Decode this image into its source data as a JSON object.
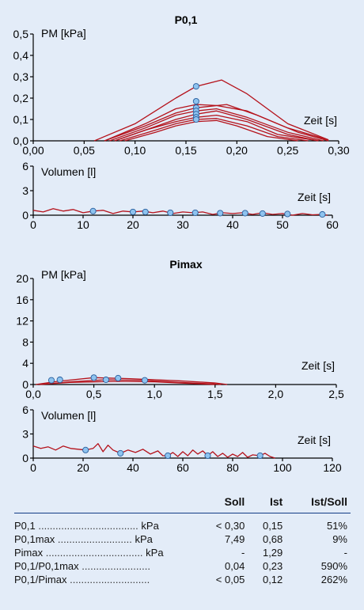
{
  "chart_data": [
    {
      "type": "line",
      "title": "P0,1",
      "ylabel": "PM [kPa]",
      "xlabel": "Zeit [s]",
      "xlim": [
        0,
        0.3
      ],
      "ylim": [
        0,
        0.5
      ],
      "x_ticks": [
        "0,00",
        "0,05",
        "0,10",
        "0,15",
        "0,20",
        "0,25",
        "0,30"
      ],
      "y_ticks": [
        "0,0",
        "0,1",
        "0,2",
        "0,3",
        "0,4",
        "0,5"
      ],
      "marker_x": 0.16,
      "markers_y": [
        0.255,
        0.185,
        0.155,
        0.14,
        0.125,
        0.11,
        0.1
      ],
      "series": [
        {
          "points": [
            [
              0.06,
              0
            ],
            [
              0.1,
              0.08
            ],
            [
              0.14,
              0.2
            ],
            [
              0.16,
              0.255
            ],
            [
              0.185,
              0.285
            ],
            [
              0.21,
              0.22
            ],
            [
              0.25,
              0.08
            ],
            [
              0.29,
              0.005
            ]
          ]
        },
        {
          "points": [
            [
              0.07,
              0
            ],
            [
              0.11,
              0.08
            ],
            [
              0.14,
              0.15
            ],
            [
              0.16,
              0.17
            ],
            [
              0.18,
              0.165
            ],
            [
              0.21,
              0.14
            ],
            [
              0.25,
              0.06
            ],
            [
              0.29,
              0.005
            ]
          ]
        },
        {
          "points": [
            [
              0.07,
              0
            ],
            [
              0.11,
              0.07
            ],
            [
              0.14,
              0.13
            ],
            [
              0.16,
              0.155
            ],
            [
              0.19,
              0.17
            ],
            [
              0.22,
              0.12
            ],
            [
              0.26,
              0.04
            ],
            [
              0.29,
              0
            ]
          ]
        },
        {
          "points": [
            [
              0.075,
              0
            ],
            [
              0.11,
              0.06
            ],
            [
              0.14,
              0.12
            ],
            [
              0.16,
              0.14
            ],
            [
              0.18,
              0.15
            ],
            [
              0.21,
              0.11
            ],
            [
              0.25,
              0.04
            ],
            [
              0.285,
              0
            ]
          ]
        },
        {
          "points": [
            [
              0.08,
              0
            ],
            [
              0.11,
              0.05
            ],
            [
              0.14,
              0.1
            ],
            [
              0.16,
              0.125
            ],
            [
              0.18,
              0.14
            ],
            [
              0.21,
              0.1
            ],
            [
              0.25,
              0.03
            ],
            [
              0.28,
              0
            ]
          ]
        },
        {
          "points": [
            [
              0.08,
              0
            ],
            [
              0.11,
              0.05
            ],
            [
              0.14,
              0.09
            ],
            [
              0.16,
              0.11
            ],
            [
              0.18,
              0.12
            ],
            [
              0.21,
              0.09
            ],
            [
              0.24,
              0.03
            ],
            [
              0.28,
              0
            ]
          ]
        },
        {
          "points": [
            [
              0.085,
              0
            ],
            [
              0.12,
              0.05
            ],
            [
              0.14,
              0.08
            ],
            [
              0.16,
              0.1
            ],
            [
              0.18,
              0.105
            ],
            [
              0.21,
              0.07
            ],
            [
              0.24,
              0.02
            ],
            [
              0.27,
              0
            ]
          ]
        },
        {
          "points": [
            [
              0.09,
              0
            ],
            [
              0.12,
              0.04
            ],
            [
              0.14,
              0.07
            ],
            [
              0.16,
              0.09
            ],
            [
              0.18,
              0.095
            ],
            [
              0.2,
              0.07
            ],
            [
              0.23,
              0.02
            ],
            [
              0.26,
              0
            ]
          ]
        }
      ]
    },
    {
      "type": "line",
      "ylabel": "Volumen [l]",
      "xlabel": "Zeit [s]",
      "xlim": [
        0,
        60
      ],
      "ylim": [
        0,
        6
      ],
      "x_ticks": [
        "0",
        "10",
        "20",
        "30",
        "40",
        "50",
        "60"
      ],
      "y_ticks": [
        "0",
        "3",
        "6"
      ],
      "markers": [
        [
          12,
          0.5
        ],
        [
          20,
          0.4
        ],
        [
          22.5,
          0.4
        ],
        [
          27.5,
          0.3
        ],
        [
          32.5,
          0.3
        ],
        [
          37.5,
          0.25
        ],
        [
          42.5,
          0.25
        ],
        [
          46,
          0.2
        ],
        [
          51,
          0.15
        ],
        [
          58,
          0.1
        ]
      ],
      "series": [
        {
          "points": [
            [
              0,
              0.6
            ],
            [
              2,
              0.4
            ],
            [
              4,
              0.8
            ],
            [
              6,
              0.5
            ],
            [
              8,
              0.7
            ],
            [
              10,
              0.3
            ],
            [
              12,
              0.5
            ],
            [
              14,
              0.6
            ],
            [
              16,
              0.2
            ],
            [
              18,
              0.5
            ],
            [
              20,
              0.4
            ],
            [
              22,
              0.5
            ],
            [
              24,
              0.3
            ],
            [
              26,
              0.5
            ],
            [
              28,
              0.2
            ],
            [
              30,
              0.4
            ],
            [
              32,
              0.3
            ],
            [
              34,
              0.4
            ],
            [
              36,
              0.1
            ],
            [
              38,
              0.3
            ],
            [
              40,
              0.2
            ],
            [
              42,
              0.3
            ],
            [
              44,
              0.1
            ],
            [
              46,
              0.3
            ],
            [
              48,
              0.1
            ],
            [
              50,
              0.2
            ],
            [
              52,
              0
            ],
            [
              54,
              0.2
            ],
            [
              56,
              0.05
            ],
            [
              58,
              0.1
            ],
            [
              59,
              0
            ]
          ]
        }
      ]
    },
    {
      "type": "line",
      "title": "Pimax",
      "ylabel": "PM [kPa]",
      "xlabel": "Zeit [s]",
      "xlim": [
        0,
        2.5
      ],
      "ylim": [
        0,
        20
      ],
      "x_ticks": [
        "0,0",
        "0,5",
        "1,0",
        "1,5",
        "2,0",
        "2,5"
      ],
      "y_ticks": [
        "0",
        "4",
        "8",
        "12",
        "16",
        "20"
      ],
      "markers": [
        [
          0.15,
          0.8
        ],
        [
          0.22,
          0.9
        ],
        [
          0.5,
          1.3
        ],
        [
          0.6,
          0.9
        ],
        [
          0.7,
          1.2
        ],
        [
          0.92,
          0.8
        ]
      ],
      "series": [
        {
          "points": [
            [
              0.02,
              0
            ],
            [
              0.2,
              0.6
            ],
            [
              0.5,
              1.3
            ],
            [
              0.8,
              1.1
            ],
            [
              1.2,
              0.7
            ],
            [
              1.5,
              0.3
            ],
            [
              1.6,
              0
            ]
          ]
        },
        {
          "points": [
            [
              0.05,
              0
            ],
            [
              0.3,
              0.5
            ],
            [
              0.6,
              0.9
            ],
            [
              0.9,
              0.8
            ],
            [
              1.2,
              0.4
            ],
            [
              1.5,
              0.1
            ],
            [
              1.55,
              0
            ]
          ]
        },
        {
          "points": [
            [
              0.05,
              0
            ],
            [
              0.3,
              0.4
            ],
            [
              0.7,
              0.6
            ],
            [
              1.0,
              0.5
            ],
            [
              1.3,
              0.2
            ],
            [
              1.5,
              0
            ]
          ]
        }
      ]
    },
    {
      "type": "line",
      "ylabel": "Volumen [l]",
      "xlabel": "Zeit [s]",
      "xlim": [
        0,
        120
      ],
      "ylim": [
        0,
        6
      ],
      "x_ticks": [
        "0",
        "20",
        "40",
        "60",
        "80",
        "100",
        "120"
      ],
      "y_ticks": [
        "0",
        "3",
        "6"
      ],
      "markers": [
        [
          21,
          1.0
        ],
        [
          35,
          0.6
        ],
        [
          54,
          0.3
        ],
        [
          70,
          0.3
        ],
        [
          91,
          0.3
        ]
      ],
      "series": [
        {
          "points": [
            [
              0,
              1.5
            ],
            [
              3,
              1.2
            ],
            [
              6,
              1.4
            ],
            [
              9,
              1.0
            ],
            [
              12,
              1.5
            ],
            [
              15,
              1.2
            ],
            [
              18,
              1.1
            ],
            [
              21,
              1.0
            ],
            [
              24,
              1.2
            ],
            [
              26,
              1.8
            ],
            [
              28,
              0.8
            ],
            [
              30,
              1.6
            ],
            [
              32,
              1.0
            ],
            [
              35,
              0.6
            ],
            [
              38,
              1.0
            ],
            [
              41,
              0.7
            ],
            [
              44,
              1.1
            ],
            [
              47,
              0.5
            ],
            [
              50,
              0.9
            ],
            [
              52,
              0.3
            ],
            [
              54,
              0.3
            ],
            [
              56,
              0.7
            ],
            [
              58,
              0.2
            ],
            [
              60,
              0.8
            ],
            [
              62,
              0.3
            ],
            [
              64,
              1.0
            ],
            [
              66,
              0.5
            ],
            [
              68,
              0.9
            ],
            [
              70,
              0.3
            ],
            [
              72,
              0.8
            ],
            [
              74,
              0.2
            ],
            [
              76,
              0.6
            ],
            [
              78,
              0.1
            ],
            [
              80,
              0.5
            ],
            [
              82,
              0.2
            ],
            [
              84,
              0.7
            ],
            [
              86,
              0.1
            ],
            [
              88,
              0.4
            ],
            [
              91,
              0.3
            ],
            [
              93,
              0.6
            ],
            [
              95,
              0.2
            ],
            [
              97,
              0
            ]
          ]
        }
      ]
    }
  ],
  "results": {
    "headers": [
      "Soll",
      "Ist",
      "Ist/Soll"
    ],
    "rows": [
      {
        "label": "P0,1",
        "dots": " ...................................",
        "unit": "kPa",
        "soll": "< 0,30",
        "ist": "0,15",
        "ratio": "51%"
      },
      {
        "label": "P0,1max",
        "dots": " ..........................",
        "unit": "kPa",
        "soll": "7,49",
        "ist": "0,68",
        "ratio": "9%"
      },
      {
        "label": "Pimax",
        "dots": " ..................................",
        "unit": "kPa",
        "soll": "-",
        "ist": "1,29",
        "ratio": "-"
      },
      {
        "label": "P0,1/P0,1max",
        "dots": " ........................",
        "unit": "",
        "soll": "0,04",
        "ist": "0,23",
        "ratio": "590%"
      },
      {
        "label": "P0,1/Pimax",
        "dots": " ............................",
        "unit": "",
        "soll": "< 0,05",
        "ist": "0,12",
        "ratio": "262%"
      }
    ]
  },
  "colors": {
    "curve": "#b5121b",
    "marker": "#8ec3ef",
    "axis": "#000000",
    "background": "#e3ecf8",
    "rule": "#123b86"
  }
}
